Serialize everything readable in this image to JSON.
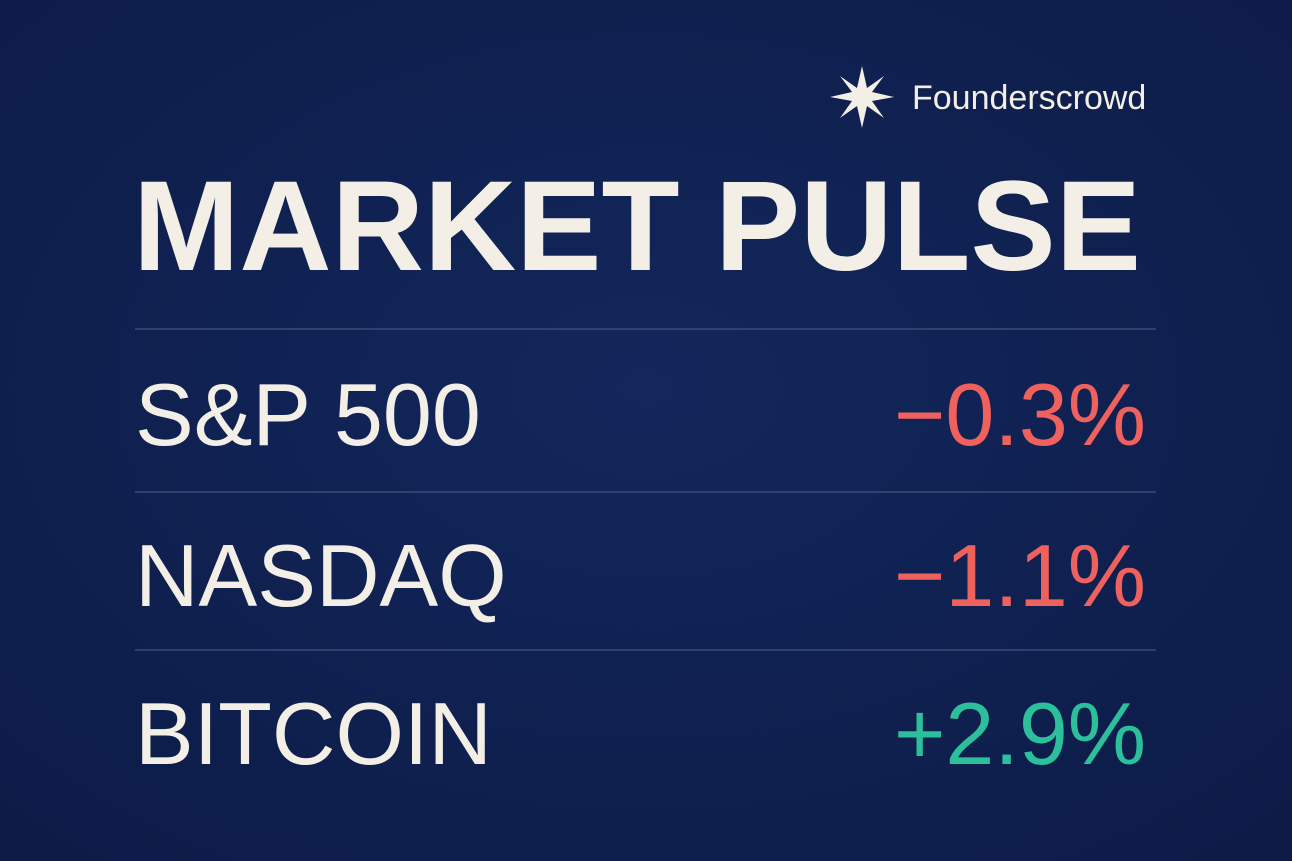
{
  "header": {
    "brand": "Founderscrowd",
    "title": "MARKET PULSE"
  },
  "table": {
    "rows": [
      [
        "S&P 500",
        "−0.3%"
      ],
      [
        "NASDAQ",
        "−1.1%"
      ],
      [
        "BITCOIN",
        "+2.9%"
      ]
    ]
  }
}
